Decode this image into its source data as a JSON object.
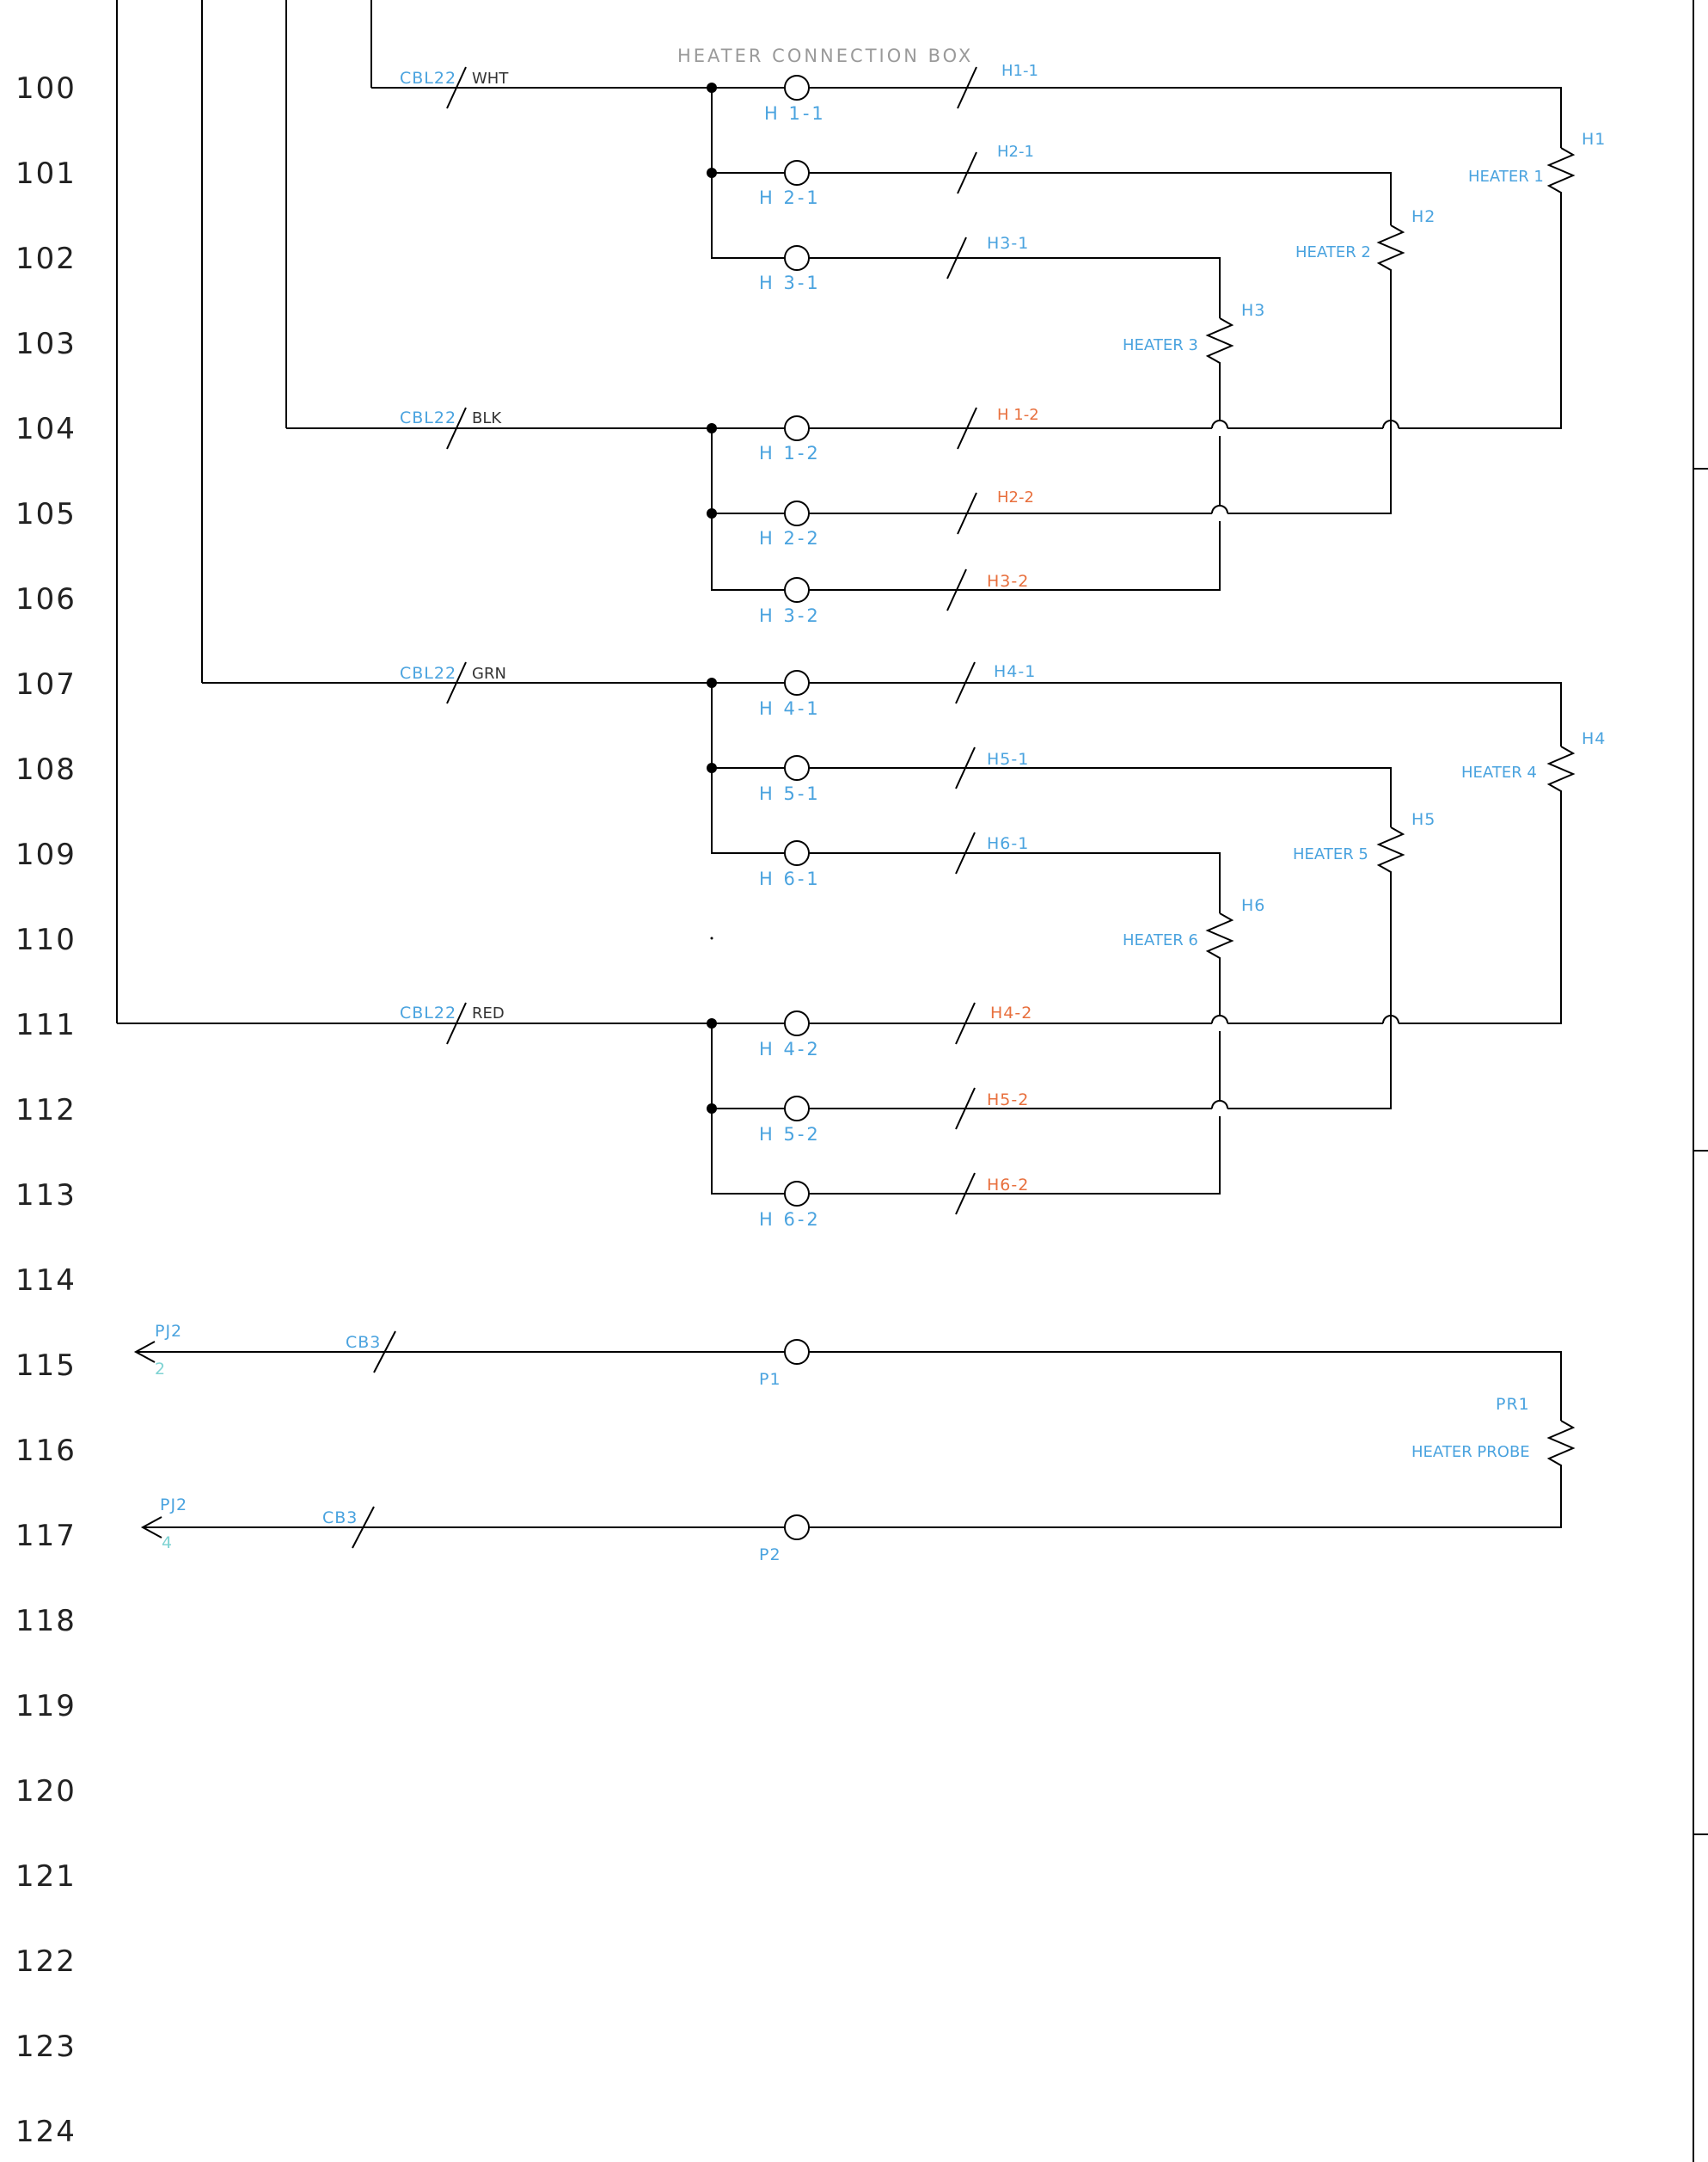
{
  "colors": {
    "wire": "#000000",
    "blue_label": "#4aa3df",
    "orange_label": "#e8703e",
    "gray_label": "#9a9a9a",
    "teal_label": "#7fd3d3",
    "row_number": "#222222"
  },
  "row_numbers": [
    "100",
    "101",
    "102",
    "103",
    "104",
    "105",
    "106",
    "107",
    "108",
    "109",
    "110",
    "111",
    "112",
    "113",
    "114",
    "115",
    "116",
    "117",
    "118",
    "119",
    "120",
    "121",
    "122",
    "123",
    "124"
  ],
  "box_title": "HEATER CONNECTION BOX",
  "cables": [
    {
      "name": "CBL22",
      "color": "WHT"
    },
    {
      "name": "CBL22",
      "color": "BLK"
    },
    {
      "name": "CBL22",
      "color": "GRN"
    },
    {
      "name": "CBL22",
      "color": "RED"
    }
  ],
  "terminals": {
    "upper": [
      "H 1-1",
      "H 2-1",
      "H 3-1",
      "H 1-2",
      "H 2-2",
      "H 3-2"
    ],
    "lower": [
      "H 4-1",
      "H 5-1",
      "H 6-1",
      "H 4-2",
      "H 5-2",
      "H 6-2"
    ],
    "probe": [
      "P1",
      "P2"
    ]
  },
  "wire_tags": {
    "feed": [
      "H1-1",
      "H2-1",
      "H3-1",
      "H4-1",
      "H5-1",
      "H6-1"
    ],
    "return": [
      "H 1-2",
      "H2-2",
      "H3-2",
      "H4-2",
      "H5-2",
      "H6-2"
    ]
  },
  "heaters": [
    {
      "tag": "H1",
      "name": "HEATER 1"
    },
    {
      "tag": "H2",
      "name": "HEATER 2"
    },
    {
      "tag": "H3",
      "name": "HEATER 3"
    },
    {
      "tag": "H4",
      "name": "HEATER 4"
    },
    {
      "tag": "H5",
      "name": "HEATER 5"
    },
    {
      "tag": "H6",
      "name": "HEATER 6"
    }
  ],
  "probe": {
    "tag": "PR1",
    "name": "HEATER PROBE"
  },
  "probe_connectors": [
    {
      "connector": "PJ2",
      "pin": "2",
      "cable": "CB3"
    },
    {
      "connector": "PJ2",
      "pin": "4",
      "cable": "CB3"
    }
  ]
}
